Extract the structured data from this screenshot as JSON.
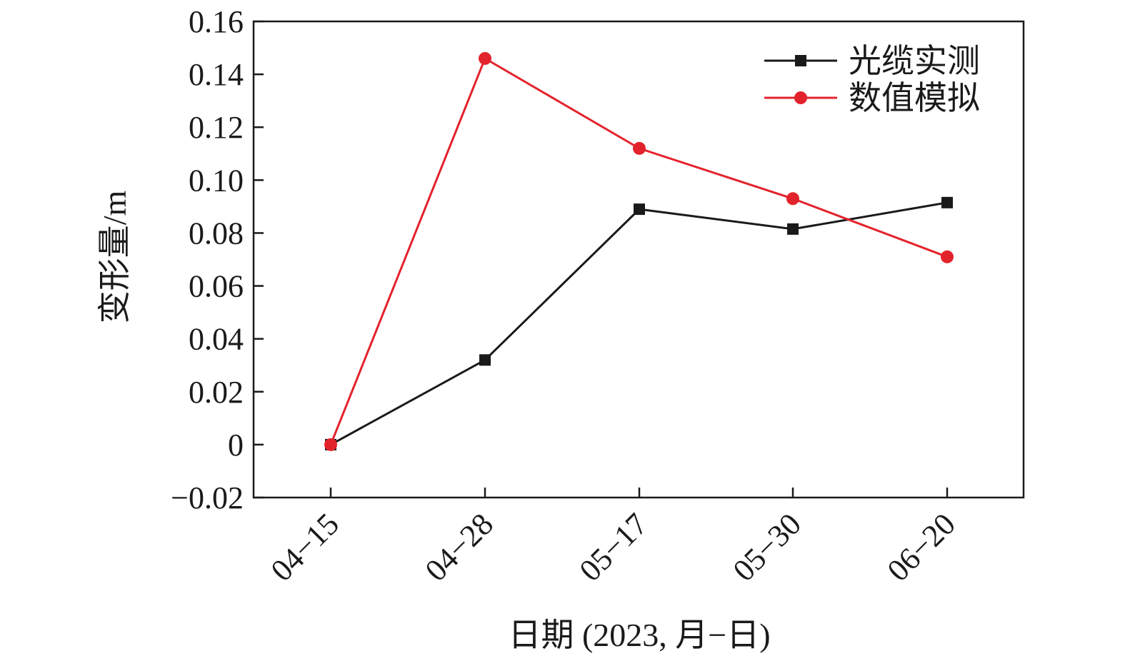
{
  "chart_data": {
    "type": "line",
    "title": "",
    "xlabel": "日期 (2023, 月−日)",
    "ylabel": "变形量/m",
    "categories": [
      "04−15",
      "04−28",
      "05−17",
      "05−30",
      "06−20"
    ],
    "ylim": [
      -0.02,
      0.16
    ],
    "yticks": [
      -0.02,
      0,
      0.02,
      0.04,
      0.06,
      0.08,
      0.1,
      0.12,
      0.14,
      0.16
    ],
    "ytick_labels": [
      "−0.02",
      "0",
      "0.02",
      "0.04",
      "0.06",
      "0.08",
      "0.10",
      "0.12",
      "0.14",
      "0.16"
    ],
    "grid": false,
    "legend_position": "top-right",
    "series": [
      {
        "name": "光缆实测",
        "color": "#1a1a1a",
        "marker": "square",
        "values": [
          0,
          0.032,
          0.089,
          0.0815,
          0.0915
        ]
      },
      {
        "name": "数值模拟",
        "color": "#e3232c",
        "marker": "circle",
        "values": [
          0,
          0.146,
          0.112,
          0.093,
          0.071
        ]
      }
    ]
  }
}
